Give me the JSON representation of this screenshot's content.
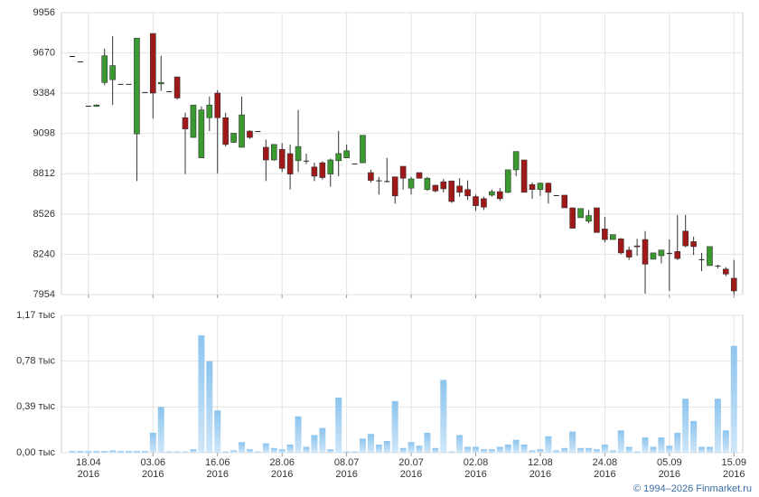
{
  "chart_data": [
    {
      "type": "candlestick",
      "up_color": "#3a9a30",
      "down_color": "#a01818",
      "flat_color": "#222222",
      "grid": true,
      "ylim": [
        7954,
        9956
      ],
      "yticks": [
        7954,
        8240,
        8526,
        8812,
        9098,
        9384,
        9670,
        9956
      ],
      "open": [
        9648,
        9610,
        9295,
        9290,
        9460,
        9480,
        9450,
        9450,
        9095,
        9392,
        9808,
        9450,
        9398,
        9500,
        9210,
        9070,
        8925,
        9210,
        9385,
        9210,
        9035,
        9000,
        9115,
        9115,
        9000,
        8910,
        8985,
        8955,
        8905,
        8905,
        8860,
        8890,
        8810,
        8905,
        8925,
        8885,
        8890,
        8820,
        8765,
        8760,
        8790,
        8865,
        8710,
        8820,
        8700,
        8730,
        8755,
        8760,
        8725,
        8700,
        8650,
        8635,
        8660,
        8685,
        8680,
        8840,
        8910,
        8735,
        8700,
        8745,
        8660,
        8660,
        8570,
        8500,
        8475,
        8570,
        8420,
        8345,
        8350,
        8270,
        8300,
        8345,
        8205,
        8230,
        8250,
        8260,
        8405,
        8330,
        8205,
        8160,
        8160,
        8135,
        8070
      ],
      "high": [
        9648,
        9610,
        9295,
        9305,
        9700,
        9790,
        9450,
        9450,
        9775,
        9392,
        9808,
        9650,
        9398,
        9500,
        9245,
        9300,
        9290,
        9360,
        9405,
        9245,
        9100,
        9360,
        9120,
        9115,
        9055,
        9020,
        9030,
        9020,
        9265,
        8955,
        8890,
        8900,
        8920,
        9115,
        9020,
        8885,
        9085,
        8840,
        8790,
        8925,
        8790,
        8865,
        8790,
        8820,
        8790,
        8735,
        8775,
        8765,
        8780,
        8765,
        8665,
        8650,
        8700,
        8710,
        8840,
        8970,
        8910,
        8750,
        8750,
        8750,
        8660,
        8660,
        8570,
        8565,
        8555,
        8570,
        8505,
        8380,
        8355,
        8295,
        8350,
        8405,
        8250,
        8270,
        8345,
        8520,
        8520,
        8365,
        8250,
        8295,
        8165,
        8150,
        8200
      ],
      "low": [
        9648,
        9610,
        9295,
        9290,
        9440,
        9300,
        9450,
        9450,
        8760,
        9392,
        9205,
        9400,
        9398,
        9340,
        8810,
        9070,
        8925,
        9115,
        8815,
        9005,
        9030,
        9000,
        9060,
        9115,
        8760,
        8905,
        8825,
        8700,
        8825,
        8880,
        8760,
        8770,
        8720,
        8795,
        8925,
        8885,
        8890,
        8750,
        8665,
        8750,
        8600,
        8700,
        8665,
        8780,
        8690,
        8680,
        8680,
        8605,
        8650,
        8625,
        8550,
        8555,
        8650,
        8620,
        8675,
        8795,
        8680,
        8635,
        8655,
        8600,
        8660,
        8570,
        8425,
        8500,
        8460,
        8395,
        8325,
        8345,
        8240,
        8200,
        8230,
        7960,
        8205,
        8175,
        7980,
        8200,
        8290,
        8235,
        8120,
        8160,
        8140,
        8085,
        7955
      ],
      "close": [
        9648,
        9610,
        9295,
        9300,
        9650,
        9580,
        9450,
        9450,
        9775,
        9392,
        9385,
        9460,
        9398,
        9350,
        9130,
        9300,
        9265,
        9300,
        9210,
        9020,
        9100,
        9230,
        9070,
        9115,
        8910,
        9020,
        8850,
        8810,
        9005,
        8905,
        8795,
        8785,
        8910,
        8955,
        8975,
        8885,
        9085,
        8765,
        8765,
        8760,
        8655,
        8780,
        8775,
        8780,
        8780,
        8690,
        8705,
        8615,
        8680,
        8655,
        8585,
        8575,
        8685,
        8635,
        8840,
        8970,
        8680,
        8700,
        8745,
        8680,
        8660,
        8570,
        8425,
        8565,
        8515,
        8395,
        8345,
        8380,
        8250,
        8220,
        8295,
        8170,
        8250,
        8270,
        8250,
        8210,
        8300,
        8295,
        8205,
        8295,
        8160,
        8100,
        7980
      ]
    },
    {
      "type": "bar",
      "color": "#8cc4ee",
      "grid": true,
      "ylim": [
        0,
        1.17
      ],
      "yticks": [
        {
          "value": 0,
          "label": "0,00 тыс"
        },
        {
          "value": 0.39,
          "label": "0,39 тыс"
        },
        {
          "value": 0.78,
          "label": "0,78 тыс"
        },
        {
          "value": 1.17,
          "label": "1,17 тыс"
        }
      ],
      "categories": [
        null,
        null,
        "18.04\n2016",
        null,
        null,
        null,
        null,
        null,
        null,
        null,
        "03.06\n2016",
        null,
        null,
        null,
        null,
        null,
        null,
        null,
        "16.06\n2016",
        null,
        null,
        null,
        null,
        null,
        null,
        null,
        "28.06\n2016",
        null,
        null,
        null,
        null,
        null,
        null,
        null,
        "08.07\n2016",
        null,
        null,
        null,
        null,
        null,
        null,
        null,
        "20.07\n2016",
        null,
        null,
        null,
        null,
        null,
        null,
        null,
        "02.08\n2016",
        null,
        null,
        null,
        null,
        null,
        null,
        null,
        "12.08\n2016",
        null,
        null,
        null,
        null,
        null,
        null,
        null,
        "24.08\n2016",
        null,
        null,
        null,
        null,
        null,
        null,
        null,
        "05.09\n2016",
        null,
        null,
        null,
        null,
        null,
        null,
        null,
        "15.09\n2016"
      ],
      "values": [
        0.015,
        0.015,
        0.015,
        0.015,
        0.015,
        0.02,
        0.015,
        0.015,
        0.015,
        0.015,
        0.17,
        0.39,
        0.01,
        0.01,
        0.01,
        0.03,
        1.0,
        0.78,
        0.36,
        0.01,
        0.02,
        0.09,
        0.03,
        0.01,
        0.08,
        0.04,
        0.03,
        0.07,
        0.31,
        0.05,
        0.15,
        0.21,
        0.03,
        0.47,
        0.01,
        0.01,
        0.12,
        0.16,
        0.07,
        0.1,
        0.44,
        0.04,
        0.09,
        0.06,
        0.17,
        0.04,
        0.62,
        0.01,
        0.15,
        0.05,
        0.05,
        0.03,
        0.03,
        0.05,
        0.07,
        0.11,
        0.07,
        0.02,
        0.03,
        0.14,
        0.02,
        0.04,
        0.18,
        0.04,
        0.04,
        0.03,
        0.07,
        0.02,
        0.19,
        0.05,
        0.01,
        0.13,
        0.05,
        0.13,
        0.06,
        0.17,
        0.46,
        0.27,
        0.05,
        0.05,
        0.46,
        0.19,
        0.91
      ]
    }
  ],
  "copyright": "© 1994–2026 Finmarket.ru"
}
